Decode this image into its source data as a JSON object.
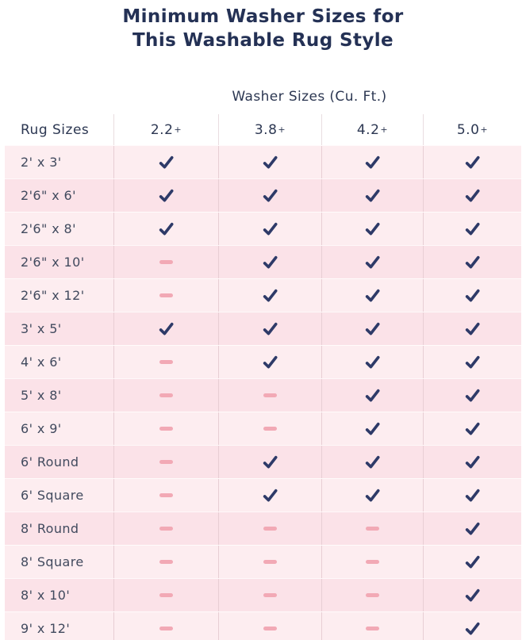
{
  "title": {
    "line1": "Minimum Washer Sizes for",
    "line2": "This Washable Rug Style"
  },
  "chart_data": {
    "type": "table",
    "title": "Minimum Washer Sizes for This Washable Rug Style",
    "column_group_label": "Washer Sizes (Cu. Ft.)",
    "row_header": "Rug Sizes",
    "columns": [
      "2.2+",
      "3.8+",
      "4.2+",
      "5.0+"
    ],
    "cell_glyphs": {
      "check": "checkmark",
      "dash": "dash"
    },
    "rows": [
      {
        "label": "2' x 3'",
        "cells": [
          "check",
          "check",
          "check",
          "check"
        ]
      },
      {
        "label": "2'6\" x 6'",
        "cells": [
          "check",
          "check",
          "check",
          "check"
        ]
      },
      {
        "label": "2'6\" x 8'",
        "cells": [
          "check",
          "check",
          "check",
          "check"
        ]
      },
      {
        "label": "2'6\" x 10'",
        "cells": [
          "dash",
          "check",
          "check",
          "check"
        ]
      },
      {
        "label": "2'6\" x 12'",
        "cells": [
          "dash",
          "check",
          "check",
          "check"
        ]
      },
      {
        "label": "3' x 5'",
        "cells": [
          "check",
          "check",
          "check",
          "check"
        ]
      },
      {
        "label": "4' x 6'",
        "cells": [
          "dash",
          "check",
          "check",
          "check"
        ]
      },
      {
        "label": "5' x 8'",
        "cells": [
          "dash",
          "dash",
          "check",
          "check"
        ]
      },
      {
        "label": "6' x 9'",
        "cells": [
          "dash",
          "dash",
          "check",
          "check"
        ]
      },
      {
        "label": "6' Round",
        "cells": [
          "dash",
          "check",
          "check",
          "check"
        ]
      },
      {
        "label": "6' Square",
        "cells": [
          "dash",
          "check",
          "check",
          "check"
        ]
      },
      {
        "label": "8' Round",
        "cells": [
          "dash",
          "dash",
          "dash",
          "check"
        ]
      },
      {
        "label": "8' Square",
        "cells": [
          "dash",
          "dash",
          "dash",
          "check"
        ]
      },
      {
        "label": "8' x 10'",
        "cells": [
          "dash",
          "dash",
          "dash",
          "check"
        ]
      },
      {
        "label": "9' x 12'",
        "cells": [
          "dash",
          "dash",
          "dash",
          "check"
        ]
      }
    ]
  },
  "colors": {
    "title_navy": "#243155",
    "header_text": "#2c3752",
    "row_label": "#414a5e",
    "check_mark": "#2e3a68",
    "dash_pink": "#f2a9b5",
    "row_light": "#fdedf0",
    "row_dark": "#fbe2e8",
    "separator": "#e8ced4",
    "background": "#ffffff"
  }
}
